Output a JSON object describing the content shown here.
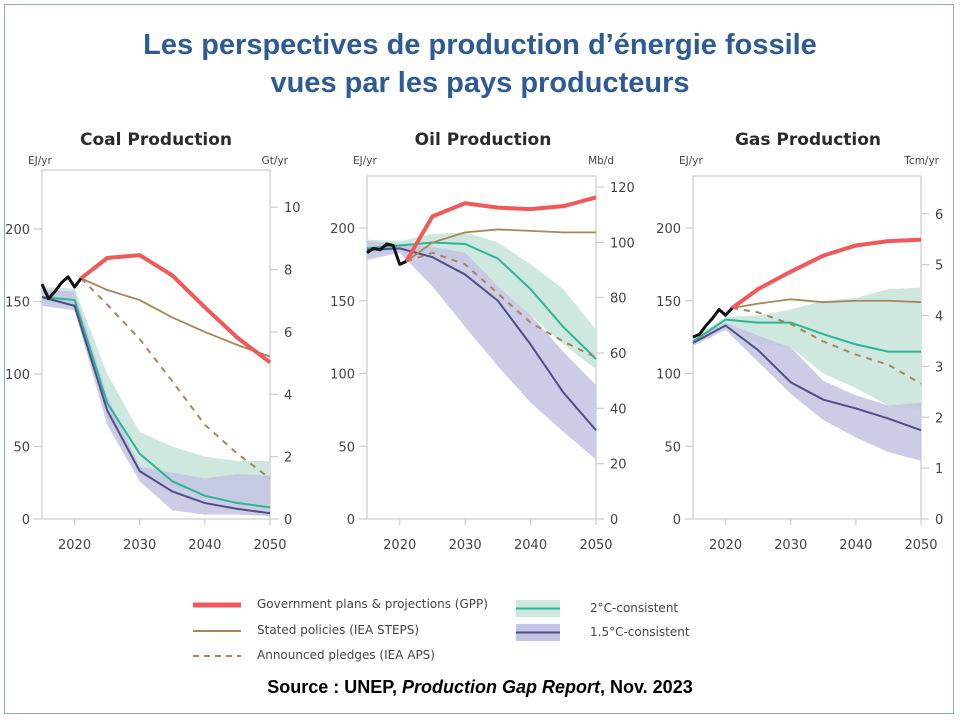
{
  "title_line1": "Les perspectives de production d’énergie fossile",
  "title_line2": "vues par les pays producteurs",
  "source": {
    "prefix": "Source : UNEP, ",
    "report": "Production Gap Report",
    "suffix": ", Nov. 2023"
  },
  "colors": {
    "gpp": "#f0595a",
    "steps": "#a5875a",
    "aps": "#a5875a",
    "c2_line": "#2ab594",
    "c2_band": "#cfe8df",
    "c15_line": "#4f4f86",
    "c15_band": "#c3c3e3",
    "overlap_band": "#9fb4c4",
    "historical": "#111111",
    "axis": "#cccccc",
    "tick_text": "#444444"
  },
  "legend": {
    "gpp": "Government plans & projections (GPP)",
    "steps": "Stated policies (IEA STEPS)",
    "aps": "Announced pledges (IEA APS)",
    "c2": "2°C-consistent",
    "c15": "1.5°C-consistent"
  },
  "chart_data": [
    {
      "type": "line",
      "title": "Coal Production",
      "ylabel_left": "EJ/yr",
      "ylabel_right": "Gt/yr",
      "xlim": [
        2015,
        2050
      ],
      "ylim": [
        0,
        240
      ],
      "x_ticks": [
        2020,
        2030,
        2040,
        2050
      ],
      "y_ticks_left": [
        0,
        50,
        100,
        150,
        200
      ],
      "y_ticks_right": [
        0,
        2,
        4,
        6,
        8,
        10
      ],
      "right_scale_per_left": 0.0465,
      "historical": {
        "x": [
          2015,
          2016,
          2017,
          2018,
          2019,
          2020,
          2021
        ],
        "y": [
          162,
          152,
          157,
          163,
          167,
          160,
          166
        ]
      },
      "gpp": {
        "x": [
          2021,
          2025,
          2030,
          2035,
          2040,
          2045,
          2050
        ],
        "y": [
          166,
          180,
          182,
          168,
          146,
          125,
          108
        ]
      },
      "steps": {
        "x": [
          2021,
          2025,
          2030,
          2035,
          2040,
          2045,
          2050
        ],
        "y": [
          166,
          158,
          151,
          139,
          129,
          120,
          112
        ]
      },
      "aps": {
        "x": [
          2021,
          2025,
          2030,
          2035,
          2040,
          2045,
          2050
        ],
        "y": [
          166,
          148,
          124,
          95,
          65,
          45,
          28
        ]
      },
      "c2": {
        "x": [
          2015,
          2020,
          2025,
          2030,
          2035,
          2040,
          2045,
          2050
        ],
        "y": [
          153,
          151,
          80,
          45,
          26,
          16,
          11,
          8
        ],
        "lo": [
          150,
          148,
          70,
          30,
          22,
          18,
          12,
          10
        ],
        "hi": [
          160,
          159,
          100,
          60,
          50,
          43,
          40,
          40
        ]
      },
      "c15": {
        "x": [
          2015,
          2020,
          2025,
          2030,
          2035,
          2040,
          2045,
          2050
        ],
        "y": [
          153,
          147,
          75,
          33,
          19,
          11,
          7,
          4
        ],
        "lo": [
          147,
          144,
          65,
          26,
          6,
          3,
          3,
          2
        ],
        "hi": [
          158,
          157,
          85,
          36,
          32,
          28,
          31,
          30
        ]
      }
    },
    {
      "type": "line",
      "title": "Oil Production",
      "ylabel_left": "EJ/yr",
      "ylabel_right": "Mb/d",
      "xlim": [
        2015,
        2050
      ],
      "ylim": [
        0,
        235
      ],
      "x_ticks": [
        2020,
        2030,
        2040,
        2050
      ],
      "y_ticks_left": [
        0,
        50,
        100,
        150,
        200
      ],
      "y_ticks_right": [
        0,
        20,
        40,
        60,
        80,
        100,
        120
      ],
      "right_scale_per_left": 0.526,
      "historical": {
        "x": [
          2015,
          2016,
          2017,
          2018,
          2019,
          2020,
          2021
        ],
        "y": [
          183,
          186,
          185,
          189,
          188,
          175,
          177
        ]
      },
      "gpp": {
        "x": [
          2021,
          2025,
          2030,
          2035,
          2040,
          2045,
          2050
        ],
        "y": [
          177,
          208,
          217,
          214,
          213,
          215,
          221
        ]
      },
      "steps": {
        "x": [
          2021,
          2025,
          2030,
          2035,
          2040,
          2045,
          2050
        ],
        "y": [
          177,
          190,
          197,
          199,
          198,
          197,
          197
        ]
      },
      "aps": {
        "x": [
          2021,
          2025,
          2030,
          2035,
          2040,
          2045,
          2050
        ],
        "y": [
          177,
          183,
          175,
          155,
          135,
          122,
          111
        ]
      },
      "c2": {
        "x": [
          2015,
          2020,
          2025,
          2030,
          2035,
          2040,
          2045,
          2050
        ],
        "y": [
          186,
          188,
          190,
          189,
          179,
          158,
          132,
          110
        ],
        "lo": [
          180,
          184,
          183,
          175,
          160,
          140,
          120,
          103
        ],
        "hi": [
          192,
          191,
          196,
          197,
          190,
          175,
          158,
          130
        ]
      },
      "c15": {
        "x": [
          2015,
          2020,
          2025,
          2030,
          2035,
          2040,
          2045,
          2050
        ],
        "y": [
          185,
          186,
          180,
          168,
          150,
          120,
          87,
          61
        ],
        "lo": [
          178,
          183,
          160,
          132,
          105,
          80,
          60,
          41
        ],
        "hi": [
          191,
          189,
          187,
          183,
          160,
          140,
          115,
          92
        ]
      }
    },
    {
      "type": "line",
      "title": "Gas Production",
      "ylabel_left": "EJ/yr",
      "ylabel_right": "Tcm/yr",
      "xlim": [
        2015,
        2050
      ],
      "ylim": [
        0,
        235
      ],
      "x_ticks": [
        2020,
        2030,
        2040,
        2050
      ],
      "y_ticks_left": [
        0,
        50,
        100,
        150,
        200
      ],
      "y_ticks_right": [
        0,
        1,
        2,
        3,
        4,
        5,
        6
      ],
      "right_scale_per_left": 0.0286,
      "historical": {
        "x": [
          2015,
          2016,
          2017,
          2018,
          2019,
          2020,
          2021
        ],
        "y": [
          125,
          127,
          133,
          138,
          144,
          140,
          145
        ]
      },
      "gpp": {
        "x": [
          2021,
          2025,
          2030,
          2035,
          2040,
          2045,
          2050
        ],
        "y": [
          145,
          158,
          170,
          181,
          188,
          191,
          192
        ]
      },
      "steps": {
        "x": [
          2021,
          2025,
          2030,
          2035,
          2040,
          2045,
          2050
        ],
        "y": [
          145,
          148,
          151,
          149,
          150,
          150,
          149
        ]
      },
      "aps": {
        "x": [
          2021,
          2025,
          2030,
          2035,
          2040,
          2045,
          2050
        ],
        "y": [
          145,
          142,
          134,
          122,
          113,
          106,
          93
        ]
      },
      "c2": {
        "x": [
          2015,
          2020,
          2025,
          2030,
          2035,
          2040,
          2045,
          2050
        ],
        "y": [
          122,
          137,
          135,
          135,
          127,
          120,
          115,
          115
        ],
        "lo": [
          120,
          135,
          120,
          118,
          100,
          90,
          78,
          75
        ],
        "hi": [
          124,
          139,
          140,
          144,
          150,
          152,
          158,
          159
        ]
      },
      "c15": {
        "x": [
          2015,
          2020,
          2025,
          2030,
          2035,
          2040,
          2045,
          2050
        ],
        "y": [
          121,
          133,
          116,
          94,
          82,
          76,
          69,
          61
        ],
        "lo": [
          119,
          130,
          108,
          86,
          68,
          56,
          46,
          40
        ],
        "hi": [
          123,
          135,
          126,
          118,
          95,
          85,
          78,
          80
        ]
      }
    }
  ]
}
